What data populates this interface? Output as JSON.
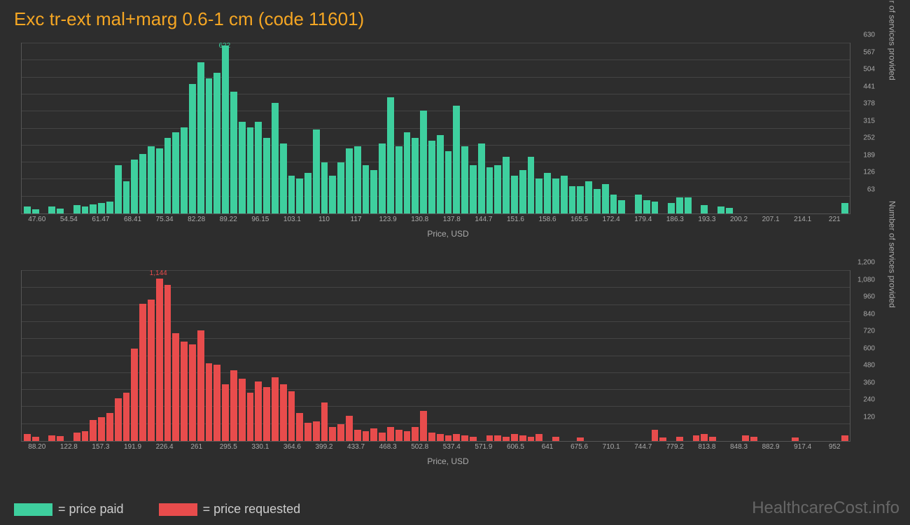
{
  "title": "Exc tr-ext mal+marg 0.6-1 cm (code 11601)",
  "chart1": {
    "type": "histogram",
    "bar_color": "#3ecf9e",
    "background_color": "#2d2d2d",
    "border_color": "#555555",
    "grid_color": "#444444",
    "text_color": "#aaaaaa",
    "peak_label": "622",
    "peak_label_color": "#3ecf9e",
    "peak_index": 24,
    "x_label": "Price, USD",
    "y_label": "Number of services provided",
    "x_ticks": [
      "47.60",
      "54.54",
      "61.47",
      "68.41",
      "75.34",
      "82.28",
      "89.22",
      "96.15",
      "103.1",
      "110",
      "117",
      "123.9",
      "130.8",
      "137.8",
      "144.7",
      "151.6",
      "158.6",
      "165.5",
      "172.4",
      "179.4",
      "186.3",
      "193.3",
      "200.2",
      "207.1",
      "214.1",
      "221"
    ],
    "y_ticks": [
      63,
      126,
      189,
      252,
      315,
      378,
      441,
      504,
      567,
      630
    ],
    "ymax": 630,
    "values": [
      25,
      15,
      0,
      25,
      18,
      0,
      30,
      25,
      35,
      40,
      45,
      180,
      120,
      200,
      220,
      250,
      240,
      280,
      300,
      320,
      480,
      560,
      500,
      520,
      622,
      450,
      340,
      320,
      340,
      280,
      410,
      260,
      140,
      130,
      150,
      310,
      190,
      140,
      190,
      240,
      250,
      180,
      160,
      260,
      430,
      250,
      300,
      280,
      380,
      270,
      290,
      230,
      400,
      250,
      180,
      260,
      170,
      180,
      210,
      140,
      160,
      210,
      130,
      150,
      130,
      140,
      100,
      100,
      120,
      90,
      110,
      70,
      50,
      0,
      70,
      50,
      45,
      0,
      40,
      60,
      60,
      0,
      30,
      0,
      25,
      20,
      0,
      0,
      0,
      0,
      0,
      0,
      0,
      0,
      0,
      0,
      0,
      0,
      0,
      40
    ]
  },
  "chart2": {
    "type": "histogram",
    "bar_color": "#e84c4c",
    "background_color": "#2d2d2d",
    "border_color": "#555555",
    "grid_color": "#444444",
    "text_color": "#aaaaaa",
    "peak_label": "1,144",
    "peak_label_color": "#e84c4c",
    "peak_index": 16,
    "x_label": "Price, USD",
    "y_label": "Number of services provided",
    "x_ticks": [
      "88.20",
      "122.8",
      "157.3",
      "191.9",
      "226.4",
      "261",
      "295.5",
      "330.1",
      "364.6",
      "399.2",
      "433.7",
      "468.3",
      "502.8",
      "537.4",
      "571.9",
      "606.5",
      "641",
      "675.6",
      "710.1",
      "744.7",
      "779.2",
      "813.8",
      "848.3",
      "882.9",
      "917.4",
      "952"
    ],
    "y_ticks": [
      120,
      240,
      360,
      480,
      600,
      720,
      840,
      960,
      1080,
      1200
    ],
    "ymax": 1200,
    "values": [
      50,
      30,
      0,
      40,
      35,
      0,
      60,
      70,
      150,
      170,
      200,
      300,
      340,
      650,
      970,
      1000,
      1144,
      1100,
      760,
      700,
      680,
      780,
      550,
      540,
      400,
      500,
      440,
      340,
      420,
      380,
      450,
      400,
      350,
      200,
      130,
      140,
      270,
      100,
      120,
      180,
      80,
      70,
      90,
      60,
      100,
      80,
      70,
      100,
      210,
      60,
      50,
      40,
      50,
      40,
      30,
      0,
      40,
      40,
      30,
      50,
      40,
      30,
      50,
      0,
      30,
      0,
      0,
      25,
      0,
      0,
      0,
      0,
      0,
      0,
      0,
      0,
      80,
      25,
      0,
      30,
      0,
      40,
      50,
      30,
      0,
      0,
      0,
      40,
      30,
      0,
      0,
      0,
      0,
      25,
      0,
      0,
      0,
      0,
      0,
      40
    ]
  },
  "legend": {
    "item1": {
      "color": "#3ecf9e",
      "label": "= price paid"
    },
    "item2": {
      "color": "#e84c4c",
      "label": "= price requested"
    }
  },
  "watermark": "HealthcareCost.info"
}
